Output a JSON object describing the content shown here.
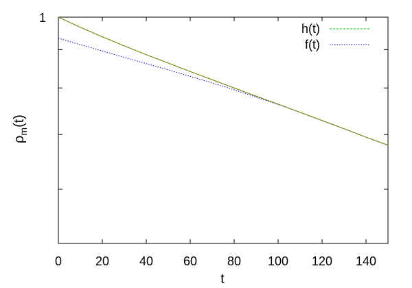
{
  "chart_data": {
    "type": "line",
    "xlabel": "t",
    "ylabel_base": "ρ",
    "ylabel_sub": "m",
    "ylabel_tail": "(t)",
    "xlim": [
      0,
      150
    ],
    "ylim": [
      0.35,
      1
    ],
    "y_scale": "log",
    "x_ticks": [
      0,
      20,
      40,
      60,
      80,
      100,
      120,
      140
    ],
    "y_labeled_ticks": [
      {
        "value": 1,
        "label": "1"
      }
    ],
    "y_minor_ticks": [
      0.86,
      0.72,
      0.58,
      0.45
    ],
    "grid": false,
    "legend_position": "top-right",
    "series": [
      {
        "name": "h(t)",
        "color": "#00cc00",
        "dash": "dashed",
        "x": [
          0,
          10,
          20,
          30,
          40,
          50,
          60,
          70,
          80,
          90,
          100,
          110,
          120,
          130,
          140,
          150
        ],
        "y": [
          1.0,
          0.954,
          0.913,
          0.875,
          0.84,
          0.808,
          0.777,
          0.748,
          0.72,
          0.693,
          0.668,
          0.643,
          0.619,
          0.596,
          0.573,
          0.552
        ]
      },
      {
        "name": "f(t)",
        "color": "#0000cc",
        "dash": "dotted",
        "x": [
          0,
          10,
          20,
          30,
          40,
          50,
          60,
          70,
          80,
          90,
          100,
          110,
          120,
          130,
          140,
          150
        ],
        "y": [
          0.907,
          0.88,
          0.855,
          0.83,
          0.806,
          0.783,
          0.76,
          0.737,
          0.714,
          0.69,
          0.667,
          0.643,
          0.619,
          0.596,
          0.573,
          0.552
        ]
      },
      {
        "color": "#808000",
        "dash": "solid",
        "x": [
          0,
          10,
          20,
          30,
          40,
          50,
          60,
          70,
          80,
          90,
          100,
          110,
          120,
          130,
          140,
          150
        ],
        "y": [
          1.0,
          0.954,
          0.913,
          0.875,
          0.84,
          0.808,
          0.777,
          0.748,
          0.72,
          0.693,
          0.668,
          0.643,
          0.619,
          0.596,
          0.573,
          0.552
        ]
      }
    ]
  }
}
